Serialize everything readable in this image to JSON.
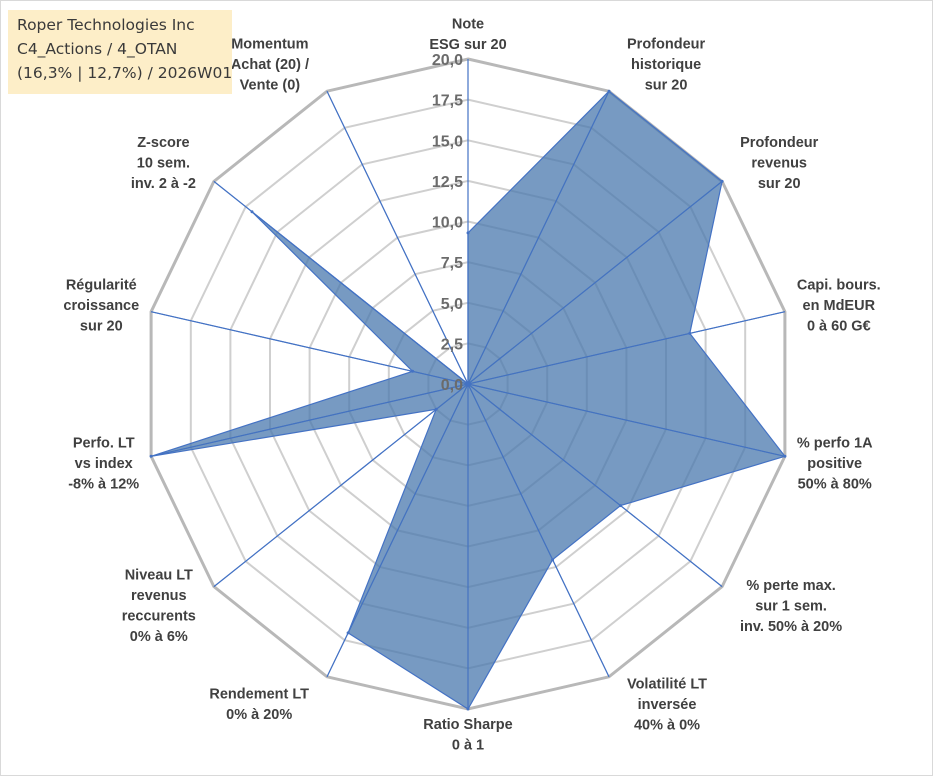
{
  "info": {
    "company": "Roper Technologies Inc",
    "portfolio": "C4_Actions / 4_OTAN",
    "stats": "(16,3% | 12,7%) / 2026W01"
  },
  "colors": {
    "fill": "#4a78ad",
    "stroke": "#4472c4",
    "grid_outer": "#b8b8b8",
    "grid_inner": "#cfcfcf",
    "spoke": "#4472c4"
  },
  "chart_data": {
    "type": "radar",
    "title": "",
    "rmin": 0,
    "rmax": 20,
    "ticks": [
      "0,0",
      "2,5",
      "5,0",
      "7,5",
      "10,0",
      "12,5",
      "15,0",
      "17,5",
      "20,0"
    ],
    "axes": [
      {
        "lines": [
          "Note",
          "ESG sur 20"
        ],
        "value": 9.3
      },
      {
        "lines": [
          "Profondeur",
          "historique",
          "sur 20"
        ],
        "value": 20
      },
      {
        "lines": [
          "Profondeur",
          "revenus",
          "sur 20"
        ],
        "value": 20
      },
      {
        "lines": [
          "Capi. bours.",
          "en MdEUR",
          "0 à 60 G€"
        ],
        "value": 14
      },
      {
        "lines": [
          "% perfo 1A",
          "positive",
          "50% à 80%"
        ],
        "value": 20
      },
      {
        "lines": [
          "% perte max.",
          "sur 1 sem.",
          "inv. 50% à 20%"
        ],
        "value": 12
      },
      {
        "lines": [
          "Volatilité LT",
          "inversée",
          "40% à 0%"
        ],
        "value": 12
      },
      {
        "lines": [
          "Ratio Sharpe",
          "0 à 1"
        ],
        "value": 20
      },
      {
        "lines": [
          "Rendement LT",
          "0% à 20%"
        ],
        "value": 17
      },
      {
        "lines": [
          "Niveau LT",
          "revenus",
          "reccurents",
          "0% à 6%"
        ],
        "value": 2.5
      },
      {
        "lines": [
          "Perfo. LT",
          "vs index",
          "-8% à 12%"
        ],
        "value": 20
      },
      {
        "lines": [
          "Régularité",
          "croissance",
          "sur 20"
        ],
        "value": 3.5
      },
      {
        "lines": [
          "Z-score",
          "10 sem.",
          "inv. 2 à -2"
        ],
        "value": 17
      },
      {
        "lines": [
          "Momentum",
          "Achat (20) /",
          "Vente (0)"
        ],
        "value": 0
      }
    ]
  }
}
